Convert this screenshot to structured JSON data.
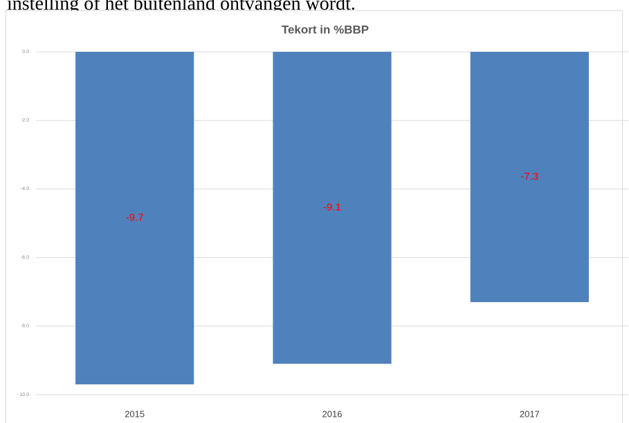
{
  "page_text": "instelling of het buitenland ontvangen wordt.",
  "chart_data": {
    "type": "bar",
    "title": "Tekort in %BBP",
    "categories": [
      "2015",
      "2016",
      "2017"
    ],
    "values": [
      -9.7,
      -9.1,
      -7.3
    ],
    "color": "#4f81bd",
    "label_color": "#ff0000",
    "ylim": [
      -10,
      0
    ],
    "yticks": [
      {
        "value": 0,
        "label": "0.0"
      },
      {
        "value": -2,
        "label": "-2.0"
      },
      {
        "value": -4,
        "label": "-4.0"
      },
      {
        "value": -6,
        "label": "-6.0"
      },
      {
        "value": -8,
        "label": "-8.0"
      },
      {
        "value": -10,
        "label": "-10.0"
      }
    ],
    "grid": true
  }
}
